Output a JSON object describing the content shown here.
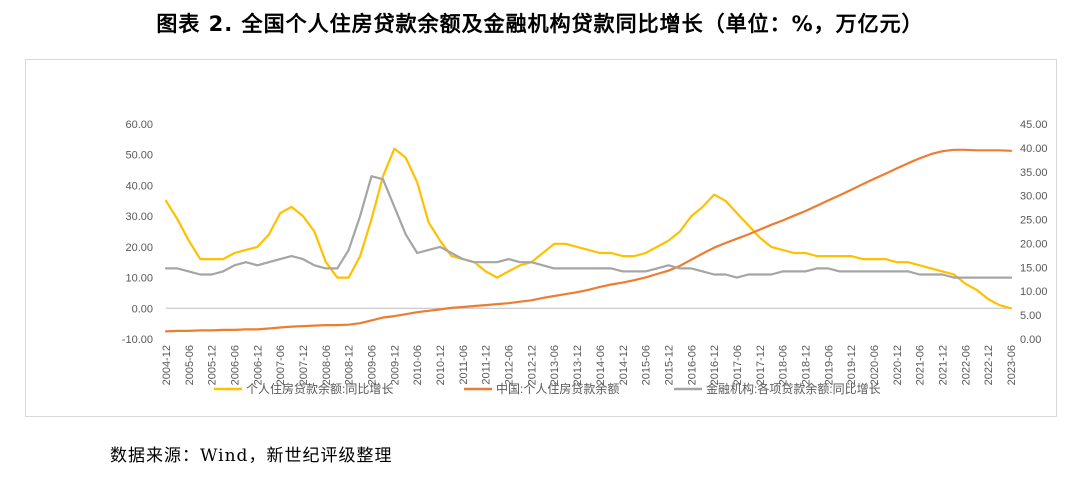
{
  "figure": {
    "title": "图表 2.   全国个人住房贷款余额及金融机构贷款同比增长（单位：%，万亿元）",
    "source": "数据来源：Wind，新世纪评级整理"
  },
  "chart_data": {
    "type": "line",
    "title": "",
    "x": [
      "2004-12",
      "2005-03",
      "2005-06",
      "2005-09",
      "2005-12",
      "2006-03",
      "2006-06",
      "2006-09",
      "2006-12",
      "2007-03",
      "2007-06",
      "2007-09",
      "2007-12",
      "2008-03",
      "2008-06",
      "2008-09",
      "2008-12",
      "2009-03",
      "2009-06",
      "2009-09",
      "2009-12",
      "2010-03",
      "2010-06",
      "2010-09",
      "2010-12",
      "2011-03",
      "2011-06",
      "2011-09",
      "2011-12",
      "2012-03",
      "2012-06",
      "2012-09",
      "2012-12",
      "2013-03",
      "2013-06",
      "2013-09",
      "2013-12",
      "2014-03",
      "2014-06",
      "2014-09",
      "2014-12",
      "2015-03",
      "2015-06",
      "2015-09",
      "2015-12",
      "2016-03",
      "2016-06",
      "2016-09",
      "2016-12",
      "2017-03",
      "2017-06",
      "2017-09",
      "2017-12",
      "2018-03",
      "2018-06",
      "2018-09",
      "2018-12",
      "2019-03",
      "2019-06",
      "2019-09",
      "2019-12",
      "2020-03",
      "2020-06",
      "2020-09",
      "2020-12",
      "2021-03",
      "2021-06",
      "2021-09",
      "2021-12",
      "2022-03",
      "2022-06",
      "2022-09",
      "2022-12",
      "2023-03",
      "2023-06"
    ],
    "x_tick_labels": [
      "2004-12",
      "2005-06",
      "2005-12",
      "2006-06",
      "2006-12",
      "2007-06",
      "2007-12",
      "2008-06",
      "2008-12",
      "2009-06",
      "2009-12",
      "2010-06",
      "2010-12",
      "2011-06",
      "2011-12",
      "2012-06",
      "2012-12",
      "2013-06",
      "2013-12",
      "2014-06",
      "2014-12",
      "2015-06",
      "2015-12",
      "2016-06",
      "2016-12",
      "2017-06",
      "2017-12",
      "2018-06",
      "2018-12",
      "2019-06",
      "2019-12",
      "2020-06",
      "2020-12",
      "2021-06",
      "2021-12",
      "2022-06",
      "2022-12",
      "2023-06"
    ],
    "y_left": {
      "min": -10,
      "max": 60,
      "step": 10,
      "tick_labels": [
        "-10.00",
        "0.00",
        "10.00",
        "20.00",
        "30.00",
        "40.00",
        "50.00",
        "60.00"
      ]
    },
    "y_right": {
      "min": 0,
      "max": 45,
      "step": 5,
      "tick_labels": [
        "0.00",
        "5.00",
        "10.00",
        "15.00",
        "20.00",
        "25.00",
        "30.00",
        "35.00",
        "40.00",
        "45.00"
      ]
    },
    "grid": false,
    "legend_position": "bottom",
    "series": [
      {
        "name": "个人住房贷款余额:同比增长",
        "axis": "left",
        "color": "#FFC000",
        "values": [
          35,
          29,
          22,
          16,
          16,
          16,
          18,
          19,
          20,
          24,
          31,
          33,
          30,
          25,
          15,
          10,
          10,
          17,
          29,
          43,
          52,
          49,
          41,
          28,
          22,
          17,
          16,
          15,
          12,
          10,
          12,
          14,
          15,
          18,
          21,
          21,
          20,
          19,
          18,
          18,
          17,
          17,
          18,
          20,
          22,
          25,
          30,
          33,
          37,
          35,
          31,
          27,
          23,
          20,
          19,
          18,
          18,
          17,
          17,
          17,
          17,
          16,
          16,
          16,
          15,
          15,
          14,
          13,
          12,
          11,
          8,
          6,
          3,
          1,
          0
        ]
      },
      {
        "name": "中国:个人住房贷款余额",
        "axis": "right",
        "color": "#ED7D31",
        "values": [
          1.6,
          1.7,
          1.7,
          1.8,
          1.8,
          1.9,
          1.9,
          2.0,
          2.0,
          2.2,
          2.4,
          2.6,
          2.7,
          2.8,
          2.9,
          2.9,
          3.0,
          3.3,
          3.9,
          4.5,
          4.8,
          5.2,
          5.6,
          5.9,
          6.2,
          6.5,
          6.7,
          6.9,
          7.1,
          7.3,
          7.5,
          7.8,
          8.1,
          8.6,
          9.0,
          9.4,
          9.8,
          10.3,
          10.9,
          11.4,
          11.8,
          12.3,
          12.9,
          13.6,
          14.3,
          15.3,
          16.6,
          17.9,
          19.1,
          20.1,
          21.0,
          21.9,
          22.9,
          23.9,
          24.8,
          25.8,
          26.8,
          27.9,
          29.0,
          30.1,
          31.2,
          32.4,
          33.5,
          34.6,
          35.7,
          36.8,
          37.8,
          38.7,
          39.3,
          39.6,
          39.6,
          39.5,
          39.5,
          39.5,
          39.4
        ]
      },
      {
        "name": "金融机构:各项贷款余额:同比增长",
        "axis": "left",
        "color": "#A5A5A5",
        "values": [
          13,
          13,
          12,
          11,
          11,
          12,
          14,
          15,
          14,
          15,
          16,
          17,
          16,
          14,
          13,
          13,
          19,
          30,
          43,
          42,
          33,
          24,
          18,
          19,
          20,
          18,
          16,
          15,
          15,
          15,
          16,
          15,
          15,
          14,
          13,
          13,
          13,
          13,
          13,
          13,
          12,
          12,
          12,
          13,
          14,
          13,
          13,
          12,
          11,
          11,
          10,
          11,
          11,
          11,
          12,
          12,
          12,
          13,
          13,
          12,
          12,
          12,
          12,
          12,
          12,
          12,
          11,
          11,
          11,
          10,
          10,
          10,
          10,
          10,
          10
        ]
      }
    ]
  }
}
